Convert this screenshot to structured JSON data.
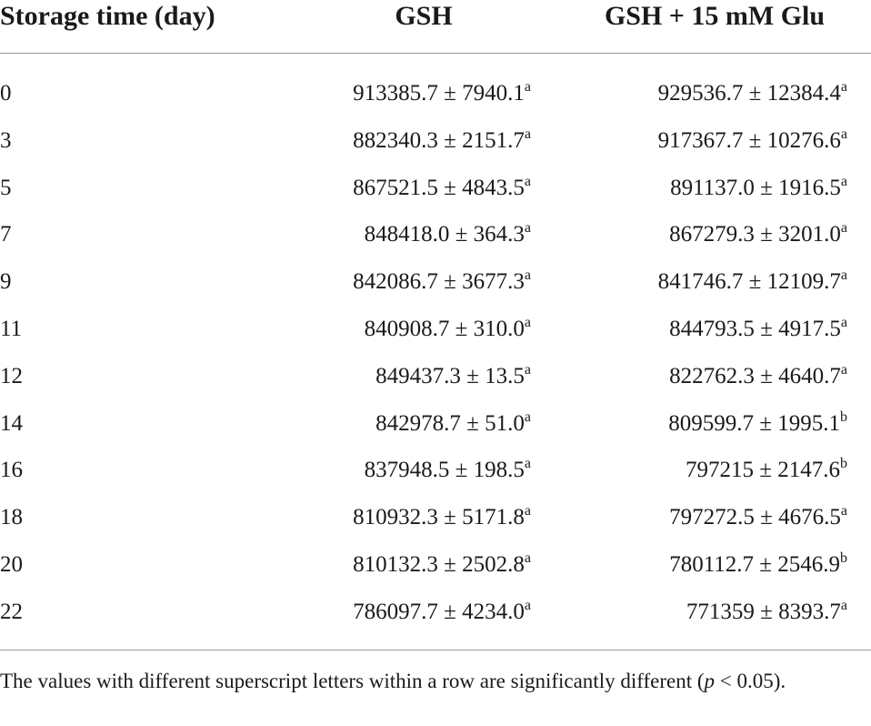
{
  "table": {
    "header": [
      "Storage time (day)",
      "GSH",
      "GSH + 15 mM Glu"
    ],
    "rows": [
      [
        "0",
        "913385.7 ± 7940.1",
        "a",
        "929536.7 ± 12384.4",
        "a"
      ],
      [
        "3",
        "882340.3 ± 2151.7",
        "a",
        "917367.7 ± 10276.6",
        "a"
      ],
      [
        "5",
        "867521.5 ± 4843.5",
        "a",
        "891137.0 ± 1916.5",
        "a"
      ],
      [
        "7",
        "848418.0 ± 364.3",
        "a",
        "867279.3 ± 3201.0",
        "a"
      ],
      [
        "9",
        "842086.7 ± 3677.3",
        "a",
        "841746.7 ± 12109.7",
        "a"
      ],
      [
        "11",
        "840908.7 ± 310.0",
        "a",
        "844793.5 ± 4917.5",
        "a"
      ],
      [
        "12",
        "849437.3 ± 13.5",
        "a",
        "822762.3 ± 4640.7",
        "a"
      ],
      [
        "14",
        "842978.7 ± 51.0",
        "a",
        "809599.7 ± 1995.1",
        "b"
      ],
      [
        "16",
        "837948.5 ± 198.5",
        "a",
        "797215 ± 2147.6",
        "b"
      ],
      [
        "18",
        "810932.3 ± 5171.8",
        "a",
        "797272.5 ± 4676.5",
        "a"
      ],
      [
        "20",
        "810132.3 ± 2502.8",
        "a",
        "780112.7 ± 2546.9",
        "b"
      ],
      [
        "22",
        "786097.7 ± 4234.0",
        "a",
        "771359 ± 8393.7",
        "a"
      ]
    ]
  },
  "note": {
    "before": "The values with different superscript letters within a row are significantly different (",
    "italic": "p",
    "after": " < 0.05)."
  }
}
